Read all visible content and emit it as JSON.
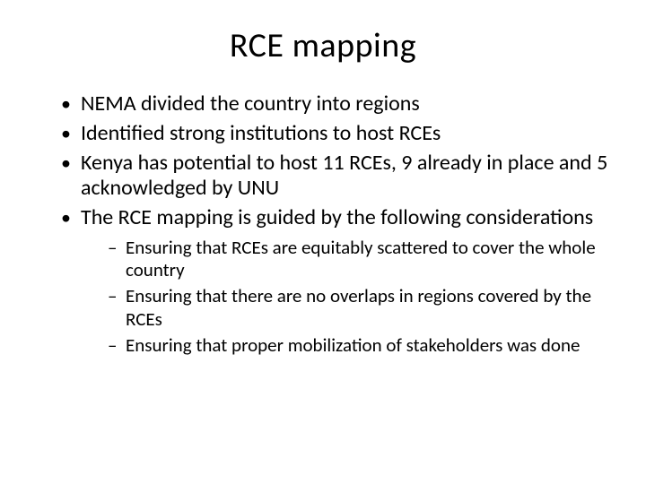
{
  "title": "RCE mapping",
  "bullets": [
    {
      "text": "NEMA divided the country into regions"
    },
    {
      "text": "Identified strong institutions to host RCEs"
    },
    {
      "text": "Kenya has potential to host 11 RCEs, 9 already in place and 5 acknowledged by UNU"
    },
    {
      "text": "The RCE mapping is guided by the following considerations"
    }
  ],
  "sub_bullets": [
    {
      "text": "Ensuring that RCEs are equitably scattered to cover the whole country"
    },
    {
      "text": "Ensuring that there are no overlaps in regions covered by the RCEs"
    },
    {
      "text": "Ensuring that proper mobilization of stakeholders was done"
    }
  ],
  "style": {
    "background_color": "#ffffff",
    "text_color": "#000000",
    "title_fontsize": 38,
    "bullet_fontsize": 24,
    "sub_bullet_fontsize": 21,
    "font_family": "Calibri"
  }
}
